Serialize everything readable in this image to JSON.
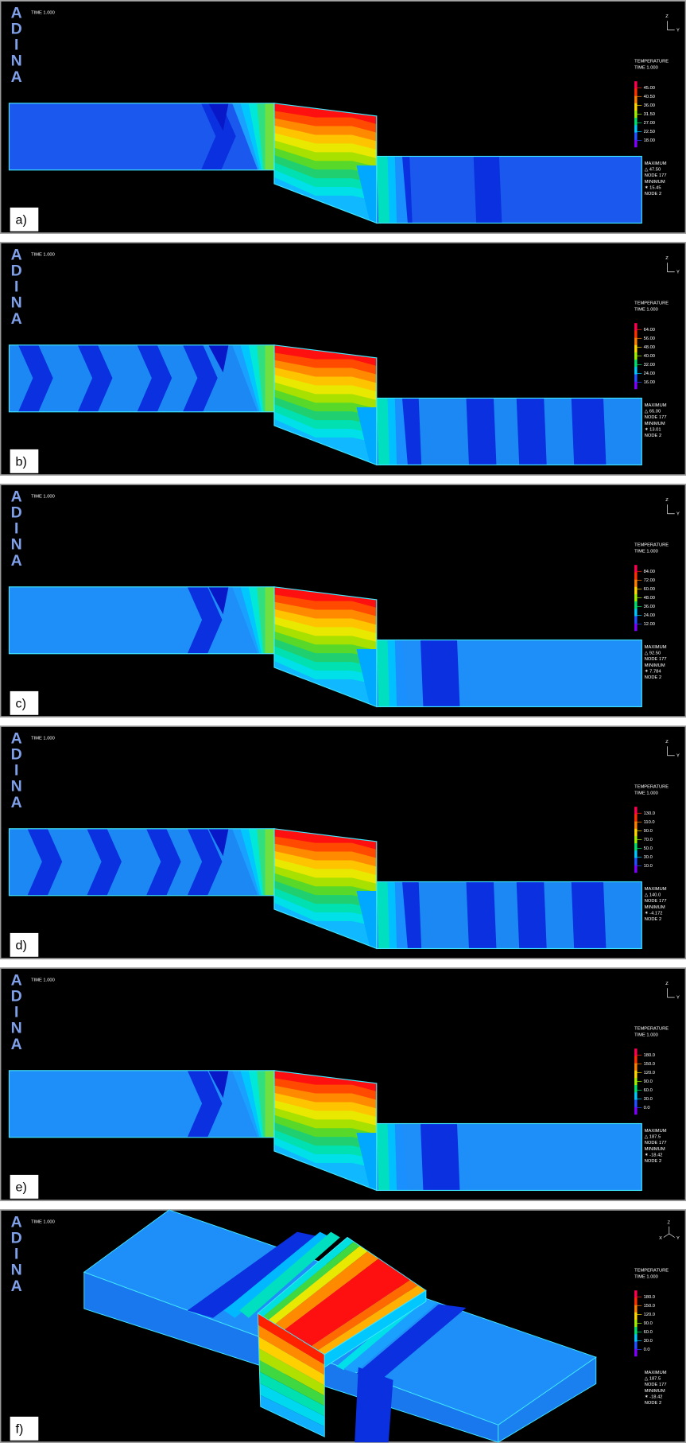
{
  "panels": [
    {
      "label": "a)",
      "time": "TIME 1.000",
      "logo": [
        "A",
        "D",
        "I",
        "N",
        "A"
      ],
      "axes": [
        "Z",
        "Y"
      ],
      "legend_title": "TEMPERATURE",
      "legend_time": "TIME 1.000",
      "legend_ticks": [
        "45.00",
        "40.50",
        "36.00",
        "31.50",
        "27.00",
        "22.50",
        "18.00"
      ],
      "max_label": "MAXIMUM",
      "max_value": "△ 47.50",
      "max_node": "NODE 177",
      "min_label": "MINIMUM",
      "min_value": "✶ 15.45",
      "min_node": "NODE 2"
    },
    {
      "label": "b)",
      "time": "TIME 1.000",
      "logo": [
        "A",
        "D",
        "I",
        "N",
        "A"
      ],
      "axes": [
        "Z",
        "Y"
      ],
      "legend_title": "TEMPERATURE",
      "legend_time": "TIME 1.000",
      "legend_ticks": [
        "64.00",
        "56.00",
        "48.00",
        "40.00",
        "32.00",
        "24.00",
        "16.00"
      ],
      "max_label": "MAXIMUM",
      "max_value": "△ 65.00",
      "max_node": "NODE 177",
      "min_label": "MINIMUM",
      "min_value": "✶ 13.01",
      "min_node": "NODE 2"
    },
    {
      "label": "c)",
      "time": "TIME 1.000",
      "logo": [
        "A",
        "D",
        "I",
        "N",
        "A"
      ],
      "axes": [
        "Z",
        "Y"
      ],
      "legend_title": "TEMPERATURE",
      "legend_time": "TIME 1.000",
      "legend_ticks": [
        "84.00",
        "72.00",
        "60.00",
        "48.00",
        "36.00",
        "24.00",
        "12.00"
      ],
      "max_label": "MAXIMUM",
      "max_value": "△ 92.50",
      "max_node": "NODE 177",
      "min_label": "MINIMUM",
      "min_value": "✶ 7.784",
      "min_node": "NODE 2"
    },
    {
      "label": "d)",
      "time": "TIME 1.000",
      "logo": [
        "A",
        "D",
        "I",
        "N",
        "A"
      ],
      "axes": [
        "Z",
        "Y"
      ],
      "legend_title": "TEMPERATURE",
      "legend_time": "TIME 1.000",
      "legend_ticks": [
        "130.0",
        "110.0",
        "90.0",
        "70.0",
        "50.0",
        "30.0",
        "10.0"
      ],
      "max_label": "MAXIMUM",
      "max_value": "△ 140.0",
      "max_node": "NODE 177",
      "min_label": "MINIMUM",
      "min_value": "✶ -4.172",
      "min_node": "NODE 2"
    },
    {
      "label": "e)",
      "time": "TIME 1.000",
      "logo": [
        "A",
        "D",
        "I",
        "N",
        "A"
      ],
      "axes": [
        "Z",
        "Y"
      ],
      "legend_title": "TEMPERATURE",
      "legend_time": "TIME 1.000",
      "legend_ticks": [
        "180.0",
        "150.0",
        "120.0",
        "90.0",
        "60.0",
        "30.0",
        "0.0"
      ],
      "max_label": "MAXIMUM",
      "max_value": "△ 187.5",
      "max_node": "NODE 177",
      "min_label": "MINIMUM",
      "min_value": "✶ -18.42",
      "min_node": "NODE 2"
    },
    {
      "label": "f)",
      "time": "TIME 1.000",
      "logo": [
        "A",
        "D",
        "I",
        "N",
        "A"
      ],
      "axes": [
        "Z",
        "X",
        "Y"
      ],
      "legend_title": "TEMPERATURE",
      "legend_time": "TIME 1.000",
      "legend_ticks": [
        "180.0",
        "150.0",
        "120.0",
        "90.0",
        "60.0",
        "30.0",
        "0.0"
      ],
      "max_label": "MAXIMUM",
      "max_value": "△ 187.5",
      "max_node": "NODE 177",
      "min_label": "MINIMUM",
      "min_value": "✶ -18.42",
      "min_node": "NODE 2"
    }
  ]
}
